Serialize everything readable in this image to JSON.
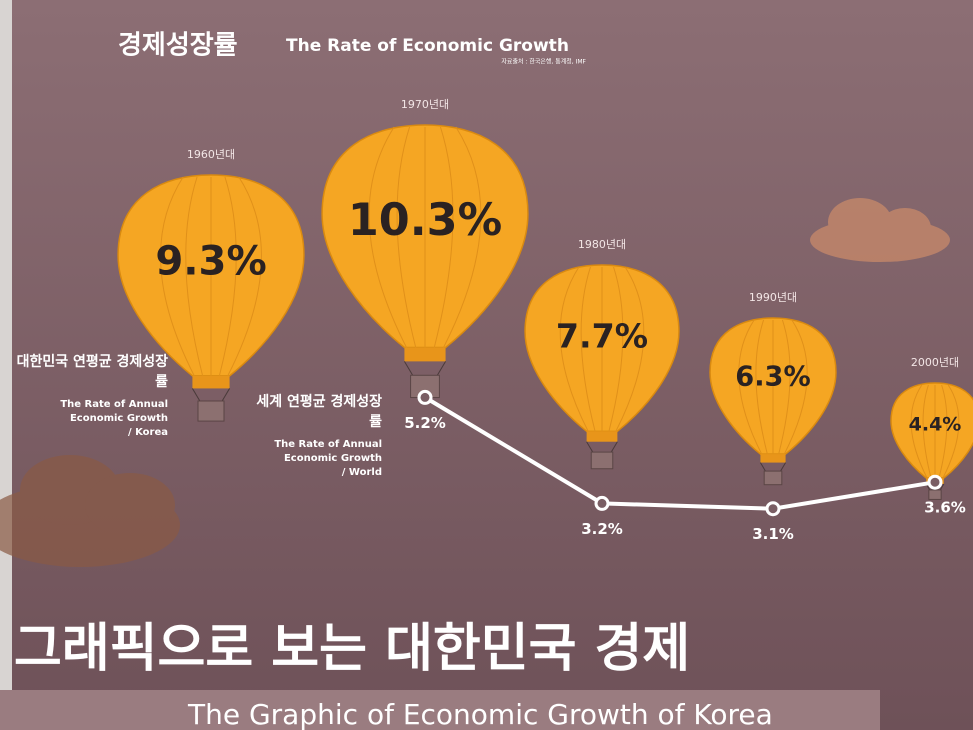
{
  "chart_data": {
    "type": "balloon",
    "title": "경제성장률",
    "subtitle": "The Rate of Economic Growth",
    "source": "자료출처 : 한국은행, 통계청, IMF",
    "categories": [
      "1960년대",
      "1970년대",
      "1980년대",
      "1990년대",
      "2000년대"
    ],
    "series": [
      {
        "name": "대한민국 연평균 경제성장률",
        "description": [
          "The Rate of Annual",
          "Economic Growth",
          "/ Korea"
        ],
        "color": "#f5a623",
        "values": [
          9.3,
          10.3,
          7.7,
          6.3,
          4.4
        ],
        "value_labels": [
          "9.3%",
          "10.3%",
          "7.7%",
          "6.3%",
          "4.4%"
        ]
      },
      {
        "name": "세계 연평균 경제성장률",
        "description": [
          "The Rate of Annual",
          "Economic Growth",
          "/ World"
        ],
        "color": "#ffffff",
        "values": [
          null,
          5.2,
          3.2,
          3.1,
          3.6
        ],
        "value_labels": [
          null,
          "5.2%",
          "3.2%",
          "3.1%",
          "3.6%"
        ]
      }
    ],
    "footer_title": "그래픽으로 보는 대한민국 경제",
    "footer_subtitle": "The Graphic of Economic Growth of Korea"
  }
}
